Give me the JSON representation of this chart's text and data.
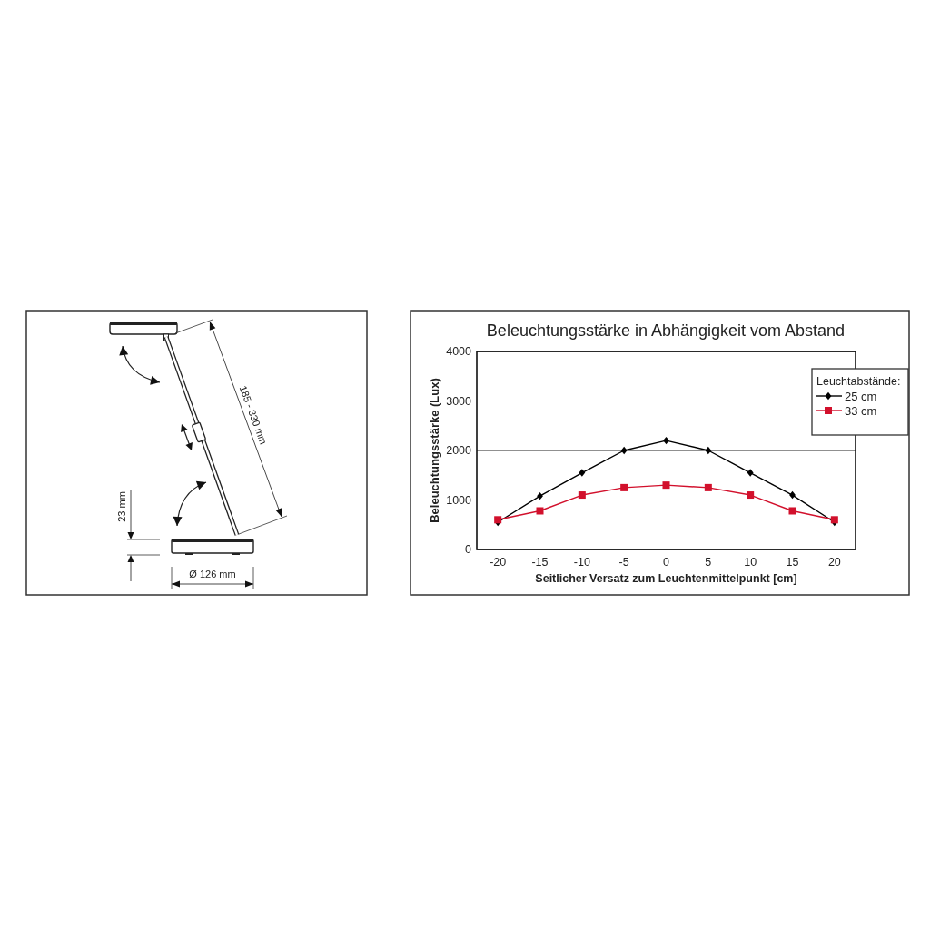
{
  "chart_data": [
    {
      "type": "other",
      "annotations": [
        "185 - 330 mm",
        "23 mm",
        "Ø 126 mm"
      ]
    },
    {
      "type": "line",
      "title": "Beleuchtungsstärke in Abhängigkeit vom Abstand",
      "xlabel": "Seitlicher Versatz zum Leuchtenmittelpunkt [cm]",
      "ylabel": "Beleuchtungsstärke (Lux)",
      "legend_title": "Leuchtabstände:",
      "categories": [
        "-20",
        "-15",
        "-10",
        "-5",
        "0",
        "5",
        "10",
        "15",
        "20"
      ],
      "series": [
        {
          "name": "25 cm",
          "color": "#000000",
          "marker": "diamond",
          "values": [
            550,
            1080,
            1550,
            2000,
            2200,
            2000,
            1550,
            1100,
            550
          ]
        },
        {
          "name": "33 cm",
          "color": "#d2102c",
          "marker": "square",
          "values": [
            600,
            780,
            1100,
            1250,
            1300,
            1250,
            1100,
            780,
            600
          ]
        }
      ],
      "ylim": [
        0,
        4000
      ],
      "yticks": [
        0,
        1000,
        2000,
        3000,
        4000
      ],
      "grid": "y",
      "legend": "top right",
      "line_style": "solid"
    }
  ]
}
